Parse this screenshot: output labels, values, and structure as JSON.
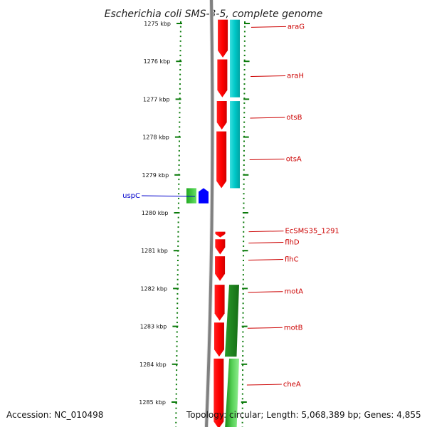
{
  "title": "Escherichia coli SMS-3-5, complete genome",
  "footer": {
    "accession": "Accession: NC_010498",
    "topology": "Topology: circular; Length: 5,068,389 bp; Genes: 4,855"
  },
  "colors": {
    "forward_cds": "#ff0000",
    "reverse_cds": "#0000ff",
    "top_hits": "#00c8c8",
    "lower_hits": "#1a8a1a",
    "tick": "#0a7a0a",
    "label_forward": "#cc0000",
    "label_reverse": "#0000cc",
    "backbone": "#808080"
  },
  "chart_data": {
    "type": "genome-map",
    "unit": "kbp",
    "range_kbp": [
      1274.9,
      1285.7
    ],
    "ticks": [
      {
        "kbp": 1275,
        "label": "1275 kbp"
      },
      {
        "kbp": 1276,
        "label": "1276 kbp"
      },
      {
        "kbp": 1277,
        "label": "1277 kbp"
      },
      {
        "kbp": 1278,
        "label": "1278 kbp"
      },
      {
        "kbp": 1279,
        "label": "1279 kbp"
      },
      {
        "kbp": 1280,
        "label": "1280 kbp"
      },
      {
        "kbp": 1281,
        "label": "1281 kbp"
      },
      {
        "kbp": 1282,
        "label": "1282 kbp"
      },
      {
        "kbp": 1283,
        "label": "1283 kbp"
      },
      {
        "kbp": 1284,
        "label": "1284 kbp"
      },
      {
        "kbp": 1285,
        "label": "1285 kbp"
      }
    ],
    "forward_genes": [
      {
        "name": "araG",
        "start": 1274.9,
        "end": 1275.9
      },
      {
        "name": "araH",
        "start": 1275.95,
        "end": 1276.95
      },
      {
        "name": "otsB",
        "start": 1277.05,
        "end": 1277.8
      },
      {
        "name": "otsA",
        "start": 1277.85,
        "end": 1279.35
      },
      {
        "name": "EcSMS35_1291",
        "start": 1280.5,
        "end": 1280.65
      },
      {
        "name": "flhD",
        "start": 1280.7,
        "end": 1281.1
      },
      {
        "name": "flhC",
        "start": 1281.15,
        "end": 1281.8
      },
      {
        "name": "motA",
        "start": 1281.9,
        "end": 1282.85
      },
      {
        "name": "motB",
        "start": 1282.9,
        "end": 1283.8
      },
      {
        "name": "cheA",
        "start": 1283.85,
        "end": 1285.7
      }
    ],
    "reverse_genes": [
      {
        "name": "uspC",
        "start": 1279.35,
        "end": 1279.75
      }
    ],
    "gene_labels": [
      {
        "name": "araG",
        "kbp": 1275.1
      },
      {
        "name": "araH",
        "kbp": 1276.4
      },
      {
        "name": "otsB",
        "kbp": 1277.5
      },
      {
        "name": "otsA",
        "kbp": 1278.6
      },
      {
        "name": "EcSMS35_1291",
        "kbp": 1280.5
      },
      {
        "name": "flhD",
        "kbp": 1280.8
      },
      {
        "name": "flhC",
        "kbp": 1281.25
      },
      {
        "name": "motA",
        "kbp": 1282.1
      },
      {
        "name": "motB",
        "kbp": 1283.05
      },
      {
        "name": "cheA",
        "kbp": 1284.55
      },
      {
        "name": "uspC",
        "kbp": 1279.55
      }
    ],
    "top_hits": [
      {
        "start": 1274.9,
        "end": 1276.95
      },
      {
        "start": 1277.05,
        "end": 1279.35
      }
    ],
    "lower_hits": [
      {
        "start": 1281.9,
        "end": 1283.8,
        "shade": "dark"
      },
      {
        "start": 1283.85,
        "end": 1285.7,
        "shade": "light"
      }
    ]
  }
}
